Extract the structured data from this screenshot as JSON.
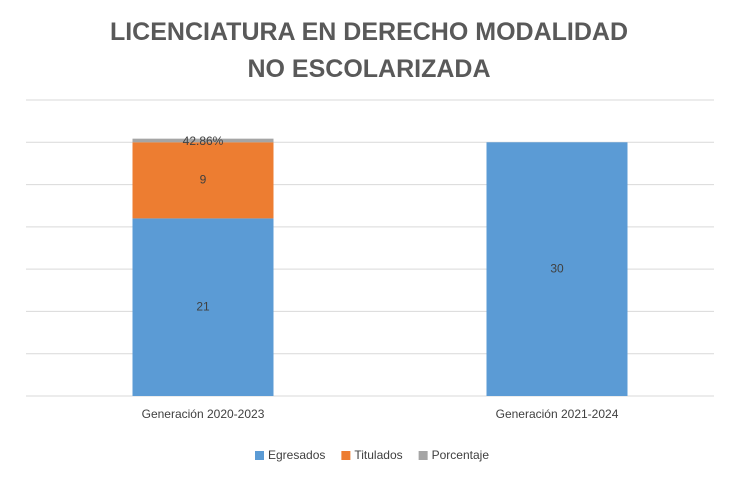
{
  "chart_data": {
    "type": "stacked_bar",
    "title": "LICENCIATURA EN DERECHO MODALIDAD NO ESCOLARIZADA",
    "categories": [
      "Generación 2020-2023",
      "Generación 2021-2024"
    ],
    "series": [
      {
        "name": "Egresados",
        "color": "#5b9bd5",
        "values": [
          21,
          30
        ]
      },
      {
        "name": "Titulados",
        "color": "#ed7d31",
        "values": [
          9,
          null
        ]
      },
      {
        "name": "Porcentaje",
        "color": "#a5a5a5",
        "values": [
          0.4286,
          null
        ],
        "value_labels": [
          "42.86%",
          null
        ]
      }
    ],
    "ylim": [
      0,
      35
    ],
    "yticks": [
      0,
      5,
      10,
      15,
      20,
      25,
      30,
      35
    ],
    "grid": true,
    "legend": "bottom"
  }
}
